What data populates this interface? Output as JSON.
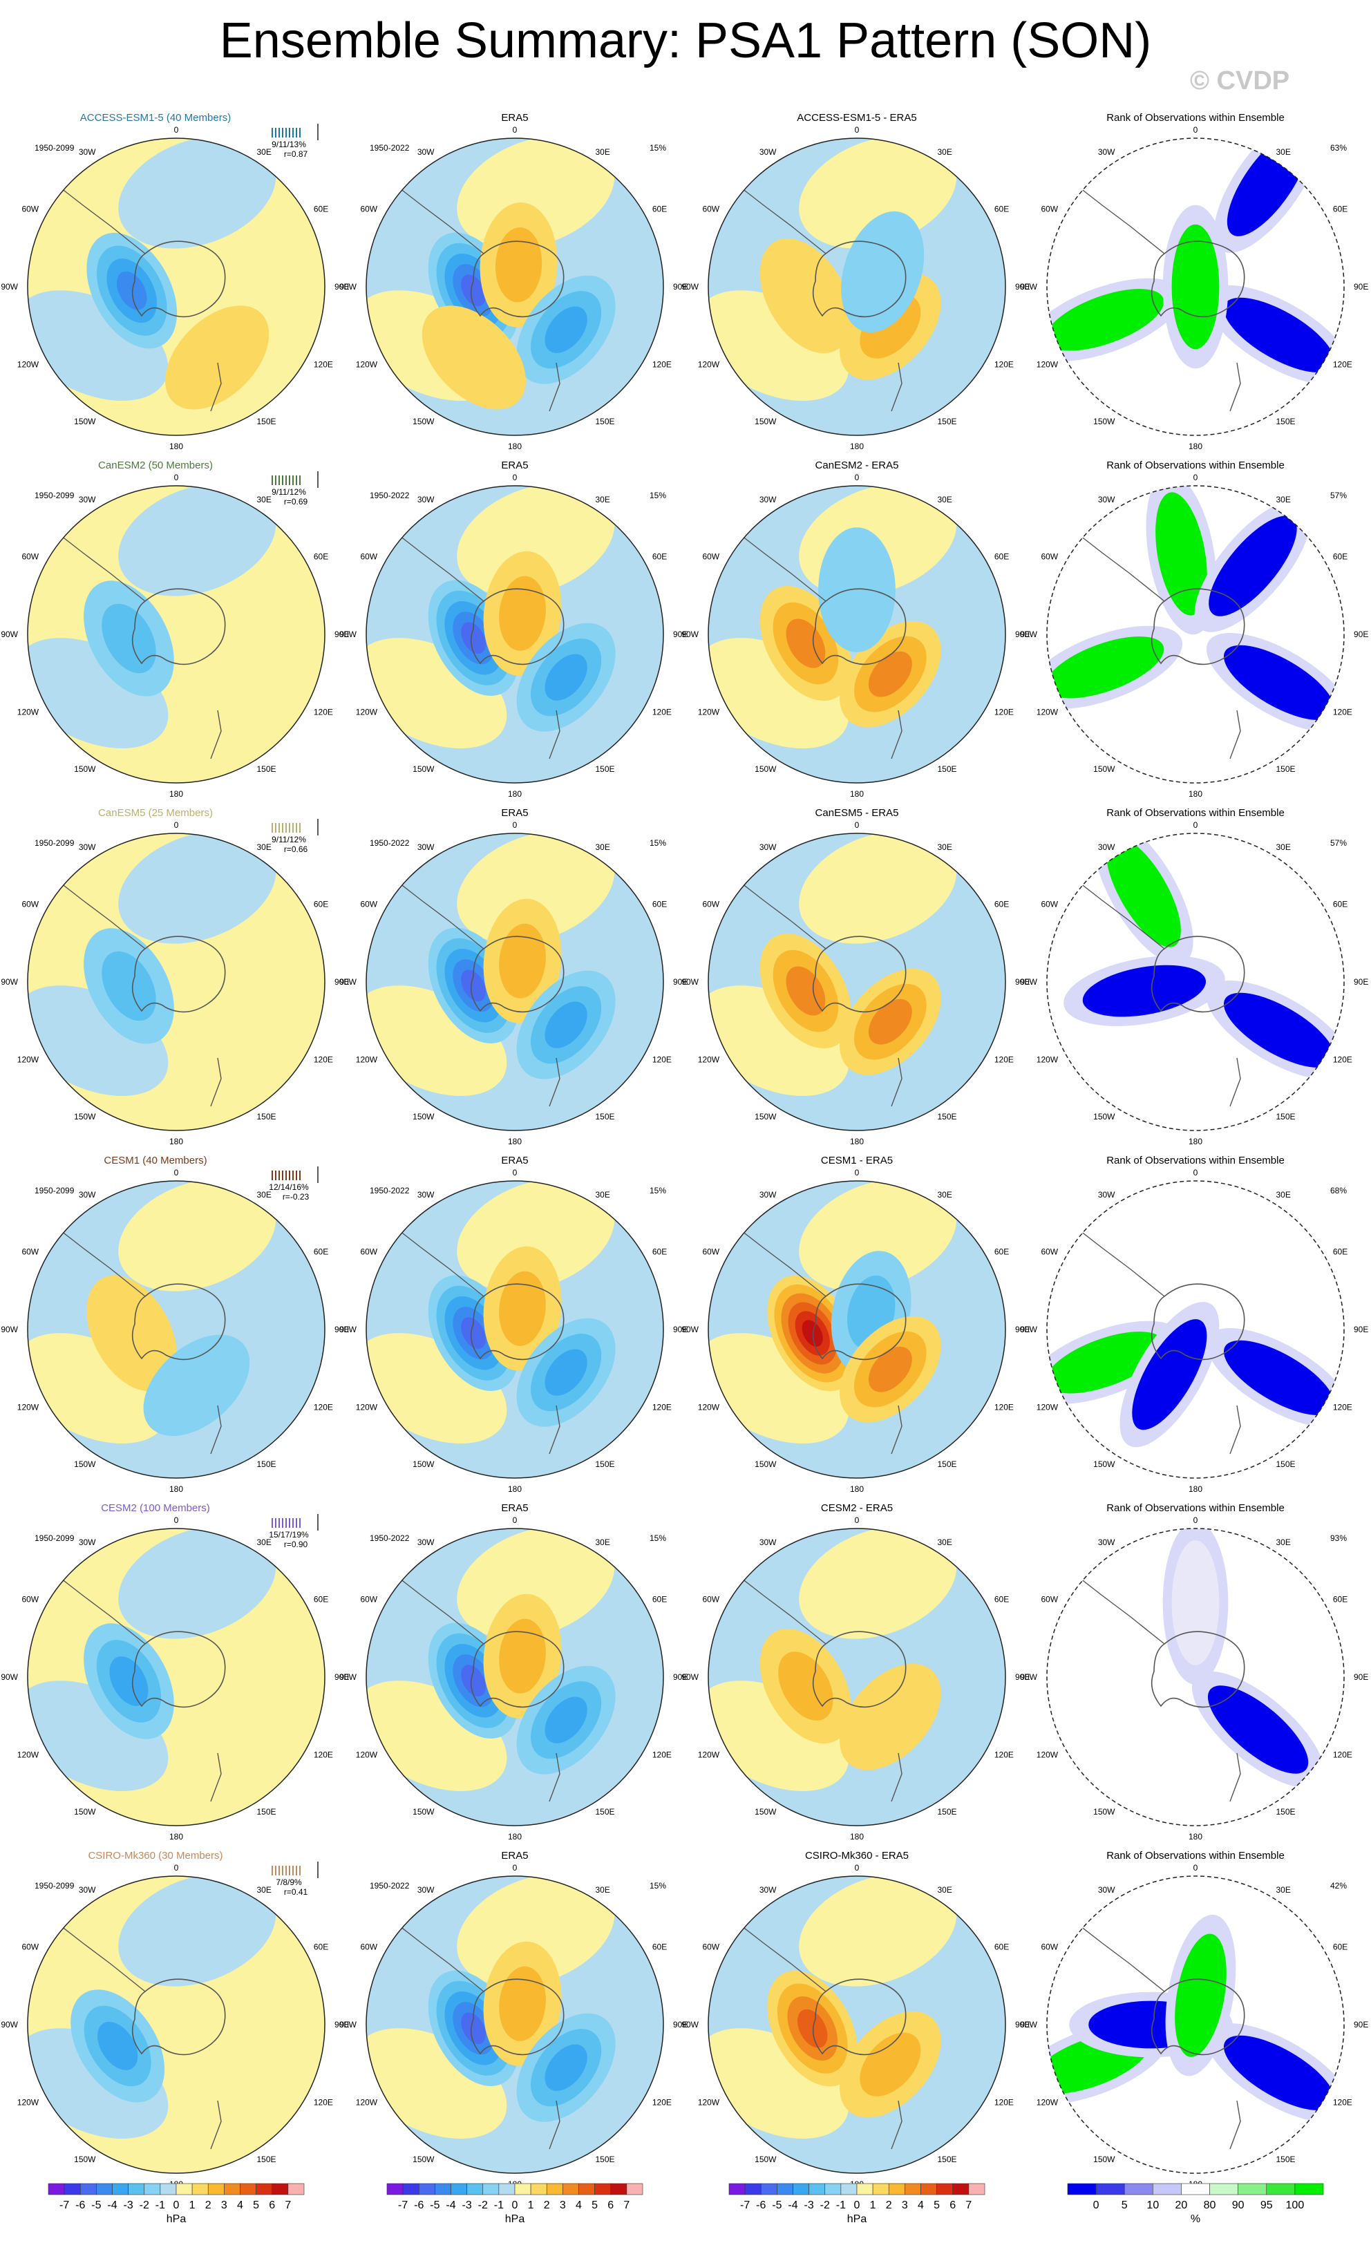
{
  "title": "Ensemble Summary: PSA1 Pattern (SON)",
  "watermark": "© CVDP",
  "colors": {
    "models": [
      "#1f77a4",
      "#4a7a3a",
      "#b8b070",
      "#7a3a1a",
      "#7a5ad0",
      "#c08a60"
    ],
    "ocean_bg": "#b4dcf0",
    "land_pos": "#fbf3a0",
    "rank_green": "#00ee00",
    "rank_blue": "#0000ee"
  },
  "rows": [
    {
      "model_title": "ACCESS-ESM1-5 (40 Members)",
      "model_period": "1950-2099",
      "spread_stats": "9/11/13%",
      "corr": "r=0.87",
      "obs_title": "ERA5",
      "obs_period": "1950-2022",
      "obs_pct": "15%",
      "diff_title": "ACCESS-ESM1-5 - ERA5",
      "rank_title": "Rank of Observations within Ensemble",
      "rank_pct": "63%"
    },
    {
      "model_title": "CanESM2 (50 Members)",
      "model_period": "1950-2099",
      "spread_stats": "9/11/12%",
      "corr": "r=0.69",
      "obs_title": "ERA5",
      "obs_period": "1950-2022",
      "obs_pct": "15%",
      "diff_title": "CanESM2 - ERA5",
      "rank_title": "Rank of Observations within Ensemble",
      "rank_pct": "57%"
    },
    {
      "model_title": "CanESM5 (25 Members)",
      "model_period": "1950-2099",
      "spread_stats": "9/11/12%",
      "corr": "r=0.66",
      "obs_title": "ERA5",
      "obs_period": "1950-2022",
      "obs_pct": "15%",
      "diff_title": "CanESM5 - ERA5",
      "rank_title": "Rank of Observations within Ensemble",
      "rank_pct": "57%"
    },
    {
      "model_title": "CESM1 (40 Members)",
      "model_period": "1950-2099",
      "spread_stats": "12/14/16%",
      "corr": "r=-0.23",
      "obs_title": "ERA5",
      "obs_period": "1950-2022",
      "obs_pct": "15%",
      "diff_title": "CESM1 - ERA5",
      "rank_title": "Rank of Observations within Ensemble",
      "rank_pct": "68%"
    },
    {
      "model_title": "CESM2 (100 Members)",
      "model_period": "1950-2099",
      "spread_stats": "15/17/19%",
      "corr": "r=0.90",
      "obs_title": "ERA5",
      "obs_period": "1950-2022",
      "obs_pct": "15%",
      "diff_title": "CESM2 - ERA5",
      "rank_title": "Rank of Observations within Ensemble",
      "rank_pct": "93%"
    },
    {
      "model_title": "CSIRO-Mk360 (30 Members)",
      "model_period": "1950-2099",
      "spread_stats": "7/8/9%",
      "corr": "r=0.41",
      "obs_title": "ERA5",
      "obs_period": "1950-2022",
      "obs_pct": "15%",
      "diff_title": "CSIRO-Mk360 - ERA5",
      "rank_title": "Rank of Observations within Ensemble",
      "rank_pct": "42%"
    }
  ],
  "map_labels": {
    "top": "0",
    "bottom": "180",
    "left": [
      "30W",
      "60W",
      "90W",
      "120W",
      "150W"
    ],
    "right": [
      "30E",
      "60E",
      "90E",
      "120E",
      "150E"
    ]
  },
  "colorbars": [
    {
      "unit": "hPa",
      "ticks": [
        "-7",
        "-6",
        "-5",
        "-4",
        "-3",
        "-2",
        "-1",
        "0",
        "1",
        "2",
        "3",
        "4",
        "5",
        "6",
        "7"
      ],
      "colors": [
        "#7a1ae0",
        "#3a3ae8",
        "#4a6af0",
        "#3a8af0",
        "#3aa8f0",
        "#5ac0f0",
        "#86d2f2",
        "#b4dcf0",
        "#fbf3a0",
        "#fbd860",
        "#f8b830",
        "#f08a20",
        "#e86018",
        "#d83010",
        "#c01010",
        "#f8b0b0"
      ]
    },
    {
      "unit": "hPa",
      "ticks": [
        "-7",
        "-6",
        "-5",
        "-4",
        "-3",
        "-2",
        "-1",
        "0",
        "1",
        "2",
        "3",
        "4",
        "5",
        "6",
        "7"
      ],
      "colors": [
        "#7a1ae0",
        "#3a3ae8",
        "#4a6af0",
        "#3a8af0",
        "#3aa8f0",
        "#5ac0f0",
        "#86d2f2",
        "#b4dcf0",
        "#fbf3a0",
        "#fbd860",
        "#f8b830",
        "#f08a20",
        "#e86018",
        "#d83010",
        "#c01010",
        "#f8b0b0"
      ]
    },
    {
      "unit": "hPa",
      "ticks": [
        "-7",
        "-6",
        "-5",
        "-4",
        "-3",
        "-2",
        "-1",
        "0",
        "1",
        "2",
        "3",
        "4",
        "5",
        "6",
        "7"
      ],
      "colors": [
        "#7a1ae0",
        "#3a3ae8",
        "#4a6af0",
        "#3a8af0",
        "#3aa8f0",
        "#5ac0f0",
        "#86d2f2",
        "#b4dcf0",
        "#fbf3a0",
        "#fbd860",
        "#f8b830",
        "#f08a20",
        "#e86018",
        "#d83010",
        "#c01010",
        "#f8b0b0"
      ]
    },
    {
      "unit": "%",
      "ticks": [
        "0",
        "5",
        "10",
        "20",
        "80",
        "90",
        "95",
        "100"
      ],
      "colors": [
        "#0000ee",
        "#3a3ae8",
        "#8888ee",
        "#c8c8f8",
        "#ffffff",
        "#c8f8c8",
        "#88f088",
        "#3ae83a",
        "#00ee00"
      ]
    }
  ],
  "chart_data": {
    "type": "heatmap",
    "description_of_panels": [
      "model ensemble mean",
      "observations",
      "difference",
      "rank of observations"
    ],
    "title": "Ensemble Summary: PSA1 Pattern (SON)",
    "units": "hPa",
    "scale": [
      -7,
      -6,
      -5,
      -4,
      -3,
      -2,
      -1,
      0,
      1,
      2,
      3,
      4,
      5,
      6,
      7
    ],
    "rank_scale_pct": [
      0,
      5,
      10,
      20,
      80,
      90,
      95,
      100
    ],
    "pattern_correlation": [
      0.87,
      0.69,
      0.66,
      -0.23,
      0.9,
      0.41
    ],
    "obs_pct_variance": 15,
    "rank_pct_within_bounds": [
      63,
      57,
      57,
      68,
      93,
      42
    ],
    "series": [
      {
        "name": "ACCESS-ESM1-5",
        "members": 40,
        "pct_variance_min_mean_max": [
          9,
          11,
          13
        ]
      },
      {
        "name": "CanESM2",
        "members": 50,
        "pct_variance_min_mean_max": [
          9,
          11,
          12
        ]
      },
      {
        "name": "CanESM5",
        "members": 25,
        "pct_variance_min_mean_max": [
          9,
          11,
          12
        ]
      },
      {
        "name": "CESM1",
        "members": 40,
        "pct_variance_min_mean_max": [
          12,
          14,
          16
        ]
      },
      {
        "name": "CESM2",
        "members": 100,
        "pct_variance_min_mean_max": [
          15,
          17,
          19
        ]
      },
      {
        "name": "CSIRO-Mk360",
        "members": 30,
        "pct_variance_min_mean_max": [
          7,
          8,
          9
        ]
      }
    ],
    "panel_features": [
      [
        [
          {
            "v": -4,
            "lon": -95,
            "colat": 0.3
          },
          {
            "v": 0.5,
            "lon": 150,
            "colat": 0.55
          }
        ],
        [
          {
            "v": -5,
            "lon": -95,
            "colat": 0.28
          },
          {
            "v": 2,
            "lon": 10,
            "colat": 0.15
          },
          {
            "v": -3,
            "lon": 130,
            "colat": 0.45
          },
          {
            "v": 1,
            "lon": -150,
            "colat": 0.55
          }
        ],
        [
          {
            "v": 1,
            "lon": -100,
            "colat": 0.35
          },
          {
            "v": 2,
            "lon": 140,
            "colat": 0.35
          },
          {
            "v": -1,
            "lon": 60,
            "colat": 0.2
          }
        ],
        [
          {
            "r": "blue",
            "lon": 120,
            "colat": 0.65
          },
          {
            "r": "green",
            "lon": -110,
            "colat": 0.65
          },
          {
            "r": "green",
            "lon": 0,
            "colat": 0.0
          },
          {
            "r": "blue",
            "lon": 35,
            "colat": 0.85
          }
        ]
      ],
      [
        [
          {
            "v": -2,
            "lon": -95,
            "colat": 0.32
          }
        ],
        [
          {
            "v": -5,
            "lon": -95,
            "colat": 0.28
          },
          {
            "v": 2,
            "lon": 20,
            "colat": 0.15
          },
          {
            "v": -3,
            "lon": 130,
            "colat": 0.45
          }
        ],
        [
          {
            "v": 3,
            "lon": -100,
            "colat": 0.35
          },
          {
            "v": 3,
            "lon": 140,
            "colat": 0.35
          },
          {
            "v": -1,
            "lon": 0,
            "colat": 0.3
          }
        ],
        [
          {
            "r": "blue",
            "lon": 120,
            "colat": 0.65
          },
          {
            "r": "green",
            "lon": -110,
            "colat": 0.65
          },
          {
            "r": "green",
            "lon": -10,
            "colat": 0.55
          },
          {
            "r": "blue",
            "lon": 40,
            "colat": 0.6
          }
        ]
      ],
      [
        [
          {
            "v": -2,
            "lon": -95,
            "colat": 0.32
          }
        ],
        [
          {
            "v": -5,
            "lon": -95,
            "colat": 0.28
          },
          {
            "v": 2,
            "lon": 20,
            "colat": 0.15
          },
          {
            "v": -3,
            "lon": 130,
            "colat": 0.45
          }
        ],
        [
          {
            "v": 3,
            "lon": -100,
            "colat": 0.35
          },
          {
            "v": 3,
            "lon": 140,
            "colat": 0.35
          }
        ],
        [
          {
            "r": "blue",
            "lon": 120,
            "colat": 0.65
          },
          {
            "r": "green",
            "lon": -30,
            "colat": 0.7
          },
          {
            "r": "blue",
            "lon": -100,
            "colat": 0.35
          }
        ]
      ],
      [
        [
          {
            "v": 1,
            "lon": -95,
            "colat": 0.3
          },
          {
            "v": -1,
            "lon": 160,
            "colat": 0.4
          }
        ],
        [
          {
            "v": -5,
            "lon": -95,
            "colat": 0.28
          },
          {
            "v": 2,
            "lon": 20,
            "colat": 0.15
          },
          {
            "v": -3,
            "lon": 130,
            "colat": 0.45
          }
        ],
        [
          {
            "v": 6,
            "lon": -95,
            "colat": 0.3
          },
          {
            "v": -2,
            "lon": 40,
            "colat": 0.15
          },
          {
            "v": 3,
            "lon": 140,
            "colat": 0.35
          }
        ],
        [
          {
            "r": "blue",
            "lon": 120,
            "colat": 0.65
          },
          {
            "r": "green",
            "lon": -110,
            "colat": 0.65
          },
          {
            "r": "blue",
            "lon": -150,
            "colat": 0.35
          }
        ]
      ],
      [
        [
          {
            "v": -3,
            "lon": -95,
            "colat": 0.32
          }
        ],
        [
          {
            "v": -5,
            "lon": -95,
            "colat": 0.28
          },
          {
            "v": 2,
            "lon": 20,
            "colat": 0.15
          },
          {
            "v": -3,
            "lon": 130,
            "colat": 0.45
          }
        ],
        [
          {
            "v": 2,
            "lon": -100,
            "colat": 0.35
          },
          {
            "v": 1,
            "lon": 140,
            "colat": 0.35
          }
        ],
        [
          {
            "r": "blue",
            "lon": 130,
            "colat": 0.55
          },
          {
            "r": "white",
            "lon": 0,
            "colat": 0.5
          }
        ]
      ],
      [
        [
          {
            "v": -3,
            "lon": -110,
            "colat": 0.42
          }
        ],
        [
          {
            "v": -5,
            "lon": -95,
            "colat": 0.28
          },
          {
            "v": 2,
            "lon": 20,
            "colat": 0.15
          },
          {
            "v": -3,
            "lon": 130,
            "colat": 0.45
          }
        ],
        [
          {
            "v": 4,
            "lon": -95,
            "colat": 0.3
          },
          {
            "v": 2,
            "lon": 140,
            "colat": 0.35
          }
        ],
        [
          {
            "r": "blue",
            "lon": 120,
            "colat": 0.65
          },
          {
            "r": "green",
            "lon": -110,
            "colat": 0.75
          },
          {
            "r": "blue",
            "lon": -90,
            "colat": 0.3
          },
          {
            "r": "green",
            "lon": 10,
            "colat": 0.2
          }
        ]
      ]
    ]
  }
}
